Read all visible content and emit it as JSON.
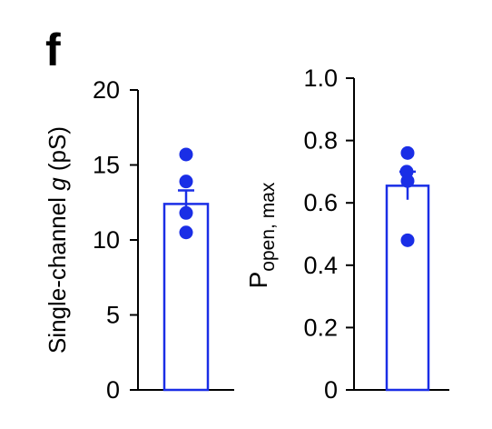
{
  "panel_label": "f",
  "colors": {
    "series": "#1a2ee6",
    "axis": "#000000",
    "bar_fill": "#ffffff"
  },
  "chart_data": [
    {
      "type": "bar",
      "title": "",
      "xlabel": "",
      "ylabel": "Single-channel g (pS)",
      "ylabel_parts": {
        "before": "Single-channel ",
        "italic": "g",
        "after": " (pS)"
      },
      "ylim": [
        0,
        20
      ],
      "yticks": [
        0,
        5,
        10,
        15,
        20
      ],
      "ytick_labels": [
        "0",
        "5",
        "10",
        "15",
        "20"
      ],
      "categories": [
        ""
      ],
      "values": [
        12.4
      ],
      "error": [
        0.9
      ],
      "points": [
        15.7,
        13.9,
        11.8,
        10.5
      ],
      "grid": false,
      "legend": "none"
    },
    {
      "type": "bar",
      "title": "",
      "xlabel": "",
      "ylabel": "Popen, max",
      "ylabel_parts": {
        "main": "P",
        "sub": "open, max"
      },
      "ylim": [
        0,
        1.0
      ],
      "yticks": [
        0,
        0.2,
        0.4,
        0.6,
        0.8,
        1.0
      ],
      "ytick_labels": [
        "0",
        "0.2",
        "0.4",
        "0.6",
        "0.8",
        "1.0"
      ],
      "categories": [
        ""
      ],
      "values": [
        0.655
      ],
      "error": [
        0.045
      ],
      "points": [
        0.76,
        0.7,
        0.67,
        0.48
      ],
      "grid": false,
      "legend": "none"
    }
  ]
}
